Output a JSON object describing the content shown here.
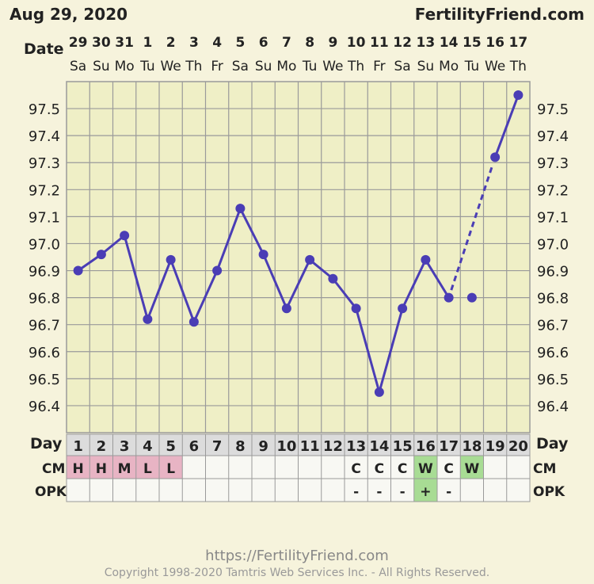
{
  "header": {
    "date": "Aug 29, 2020",
    "site": "FertilityFriend.com"
  },
  "footer": {
    "url": "https://FertilityFriend.com",
    "copyright": "Copyright 1998-2020 Tamtris Web Services Inc. - All Rights Reserved."
  },
  "row_labels": {
    "date": "Date",
    "day": "Day",
    "cm": "CM",
    "opk": "OPK"
  },
  "colors": {
    "line": "#4a3db5",
    "grid": "#9a9a9a",
    "plot_bg": "#efefc6",
    "table_header_bg": "#dcdcdc",
    "cell_bg": "#f8f8f3",
    "cm_low_bg": "#e8b4c4",
    "cm_egg_bg": "#a8dc94",
    "opk_pos_bg": "#a8dc94"
  },
  "chart_data": {
    "type": "line",
    "title": "",
    "xlabel": "Date",
    "ylabel": "",
    "ylim": [
      96.3,
      97.6
    ],
    "y_ticks": [
      "97.5",
      "97.4",
      "97.3",
      "97.2",
      "97.1",
      "97.0",
      "96.9",
      "96.8",
      "96.7",
      "96.6",
      "96.5",
      "96.4"
    ],
    "dates": [
      "29",
      "30",
      "31",
      "1",
      "2",
      "3",
      "4",
      "5",
      "6",
      "7",
      "8",
      "9",
      "10",
      "11",
      "12",
      "13",
      "14",
      "15",
      "16",
      "17"
    ],
    "weekdays": [
      "Sa",
      "Su",
      "Mo",
      "Tu",
      "We",
      "Th",
      "Fr",
      "Sa",
      "Su",
      "Mo",
      "Tu",
      "We",
      "Th",
      "Fr",
      "Sa",
      "Su",
      "Mo",
      "Tu",
      "We",
      "Th"
    ],
    "cycle_days": [
      "1",
      "2",
      "3",
      "4",
      "5",
      "6",
      "7",
      "8",
      "9",
      "10",
      "11",
      "12",
      "13",
      "14",
      "15",
      "16",
      "17",
      "18",
      "19",
      "20"
    ],
    "series": [
      {
        "values": [
          96.9,
          96.96,
          97.03,
          96.72,
          96.94,
          96.71,
          96.9,
          97.13,
          96.96,
          96.76,
          96.94,
          96.87,
          96.76,
          96.45,
          96.76,
          96.94,
          96.8,
          96.8,
          97.32,
          97.55
        ],
        "solid_segments": [
          [
            1,
            17
          ],
          [
            19,
            20
          ]
        ],
        "dashed_segments": [
          [
            17,
            19
          ]
        ]
      }
    ],
    "cm": [
      "H",
      "H",
      "M",
      "L",
      "L",
      "",
      "",
      "",
      "",
      "",
      "",
      "",
      "C",
      "C",
      "C",
      "W",
      "C",
      "W",
      "",
      ""
    ],
    "opk": [
      "",
      "",
      "",
      "",
      "",
      "",
      "",
      "",
      "",
      "",
      "",
      "",
      "-",
      "-",
      "-",
      "+",
      "-",
      "",
      "",
      ""
    ],
    "grid": true
  }
}
